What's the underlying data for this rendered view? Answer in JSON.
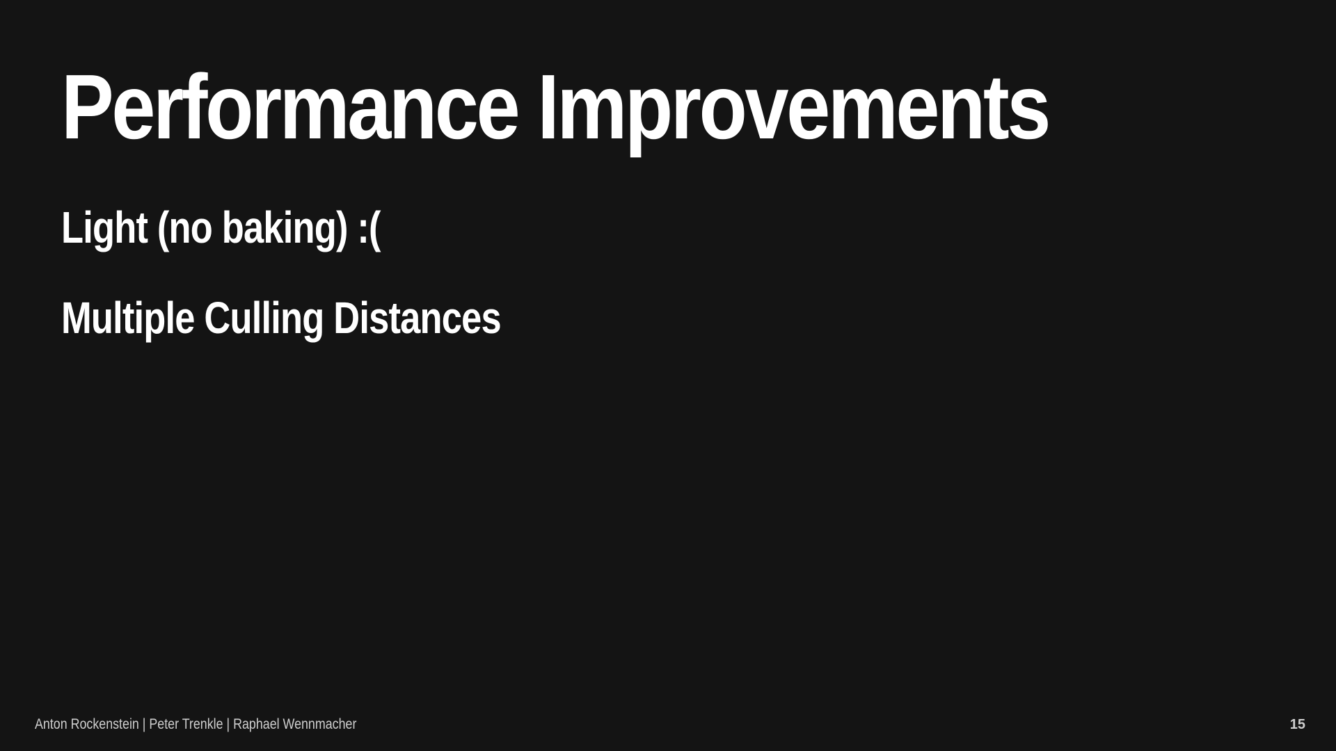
{
  "slide": {
    "title": "Performance Improvements",
    "bullets": [
      "Light (no baking) :(",
      "Multiple Culling Distances"
    ],
    "footer": {
      "authors": "Anton Rockenstein | Peter Trenkle | Raphael Wennmacher",
      "page_number": "15"
    }
  },
  "colors": {
    "background": "#141414",
    "text": "#ffffff",
    "footer_text": "#cfcfcf"
  }
}
